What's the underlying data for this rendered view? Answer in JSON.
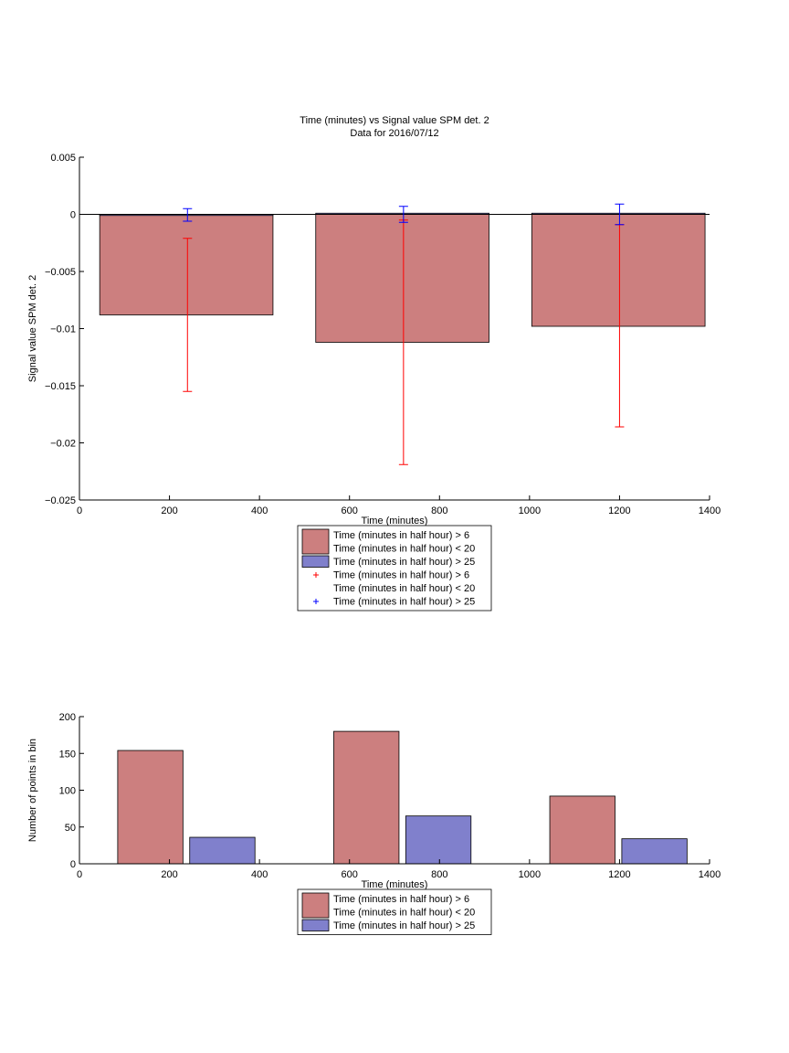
{
  "figure": {
    "title_line1": "Time (minutes) vs Signal value SPM det. 2",
    "title_line2": "Data for 2016/07/12"
  },
  "colors": {
    "red_bar": "#cc7f7f",
    "blue_bar": "#8080cc",
    "red_err": "#ff0000",
    "blue_err": "#0000ff"
  },
  "chart_data": [
    {
      "type": "bar",
      "xlabel": "Time (minutes)",
      "ylabel": "Signal value SPM det. 2",
      "xlim": [
        0,
        1400
      ],
      "ylim": [
        -0.025,
        0.005
      ],
      "xticks": [
        "0",
        "200",
        "400",
        "600",
        "800",
        "1000",
        "1200",
        "1400"
      ],
      "yticks": [
        "0.005",
        "0",
        "−0.005",
        "−0.01",
        "−0.015",
        "−0.02",
        "−0.025"
      ],
      "grid": false,
      "legend_position": "below",
      "series": [
        {
          "name": "Time (minutes in half hour) > 6 Time (minutes in half hour) < 20",
          "color": "red",
          "bars": [
            {
              "x0": 45,
              "x1": 430,
              "value": -0.0088
            },
            {
              "x0": 525,
              "x1": 910,
              "value": -0.0112
            },
            {
              "x0": 1005,
              "x1": 1390,
              "value": -0.0098
            }
          ]
        },
        {
          "name": "Time (minutes in half hour) > 25",
          "color": "blue",
          "bars": [
            {
              "x0": 45,
              "x1": 430,
              "value": -0.0001
            },
            {
              "x0": 525,
              "x1": 910,
              "value": 0.0001
            },
            {
              "x0": 1005,
              "x1": 1390,
              "value": 0.0001
            }
          ]
        }
      ],
      "errorbars": [
        {
          "name": "Time (minutes in half hour) > 6 Time (minutes in half hour) < 20",
          "color": "red",
          "points": [
            {
              "x": 240,
              "y": -0.0088,
              "low": -0.0155,
              "high": -0.0021
            },
            {
              "x": 720,
              "y": -0.0112,
              "low": -0.0219,
              "high": -0.0005
            },
            {
              "x": 1200,
              "y": -0.0098,
              "low": -0.0186,
              "high": -0.0009
            }
          ]
        },
        {
          "name": "Time (minutes in half hour) > 25",
          "color": "blue",
          "points": [
            {
              "x": 240,
              "y": 0.0,
              "low": -0.0006,
              "high": 0.0005
            },
            {
              "x": 720,
              "y": 0.0,
              "low": -0.0007,
              "high": 0.0007
            },
            {
              "x": 1200,
              "y": 0.0,
              "low": -0.0009,
              "high": 0.0009
            }
          ]
        }
      ],
      "legend": [
        {
          "kind": "patch",
          "color": "red",
          "lines": [
            "Time (minutes in half hour) > 6",
            "Time (minutes in half hour) < 20"
          ]
        },
        {
          "kind": "patch",
          "color": "blue",
          "lines": [
            "Time (minutes in half hour) > 25"
          ]
        },
        {
          "kind": "marker",
          "color": "red",
          "lines": [
            "Time (minutes in half hour) > 6",
            "Time (minutes in half hour) < 20"
          ]
        },
        {
          "kind": "marker",
          "color": "blue",
          "lines": [
            "Time (minutes in half hour) > 25"
          ]
        }
      ]
    },
    {
      "type": "bar",
      "xlabel": "Time (minutes)",
      "ylabel": "Number of points in bin",
      "xlim": [
        0,
        1400
      ],
      "ylim": [
        0,
        200
      ],
      "xticks": [
        "0",
        "200",
        "400",
        "600",
        "800",
        "1000",
        "1200",
        "1400"
      ],
      "yticks": [
        "200",
        "150",
        "100",
        "50",
        "0"
      ],
      "grid": false,
      "legend_position": "below",
      "series": [
        {
          "name": "Time (minutes in half hour) > 6 Time (minutes in half hour) < 20",
          "color": "red",
          "bars": [
            {
              "x0": 85,
              "x1": 230,
              "value": 154
            },
            {
              "x0": 565,
              "x1": 710,
              "value": 180
            },
            {
              "x0": 1045,
              "x1": 1190,
              "value": 92
            }
          ]
        },
        {
          "name": "Time (minutes in half hour) > 25",
          "color": "blue",
          "bars": [
            {
              "x0": 245,
              "x1": 390,
              "value": 36
            },
            {
              "x0": 725,
              "x1": 870,
              "value": 65
            },
            {
              "x0": 1205,
              "x1": 1350,
              "value": 34
            }
          ]
        }
      ],
      "legend": [
        {
          "kind": "patch",
          "color": "red",
          "lines": [
            "Time (minutes in half hour) > 6",
            "Time (minutes in half hour) < 20"
          ]
        },
        {
          "kind": "patch",
          "color": "blue",
          "lines": [
            "Time (minutes in half hour) > 25"
          ]
        }
      ]
    }
  ]
}
